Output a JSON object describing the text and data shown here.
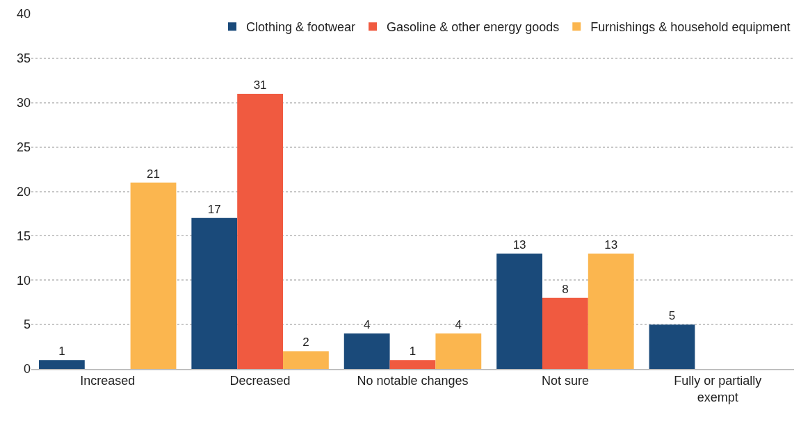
{
  "chart_data": {
    "type": "bar",
    "categories": [
      "Increased",
      "Decreased",
      "No notable changes",
      "Not sure",
      "Fully or partially exempt"
    ],
    "series": [
      {
        "name": "Clothing & footwear",
        "color": "#1a4a7a",
        "values": [
          1,
          17,
          4,
          13,
          5
        ]
      },
      {
        "name": "Gasoline & other energy goods",
        "color": "#f05a40",
        "values": [
          null,
          31,
          1,
          8,
          null
        ]
      },
      {
        "name": "Furnishings & household equipment",
        "color": "#fbb64f",
        "values": [
          21,
          2,
          4,
          13,
          null
        ]
      }
    ],
    "ylim": [
      0,
      40
    ],
    "yticks": [
      0,
      5,
      10,
      15,
      20,
      25,
      30,
      35,
      40
    ],
    "grid": "y",
    "legend": "top right",
    "data_labels": true
  }
}
